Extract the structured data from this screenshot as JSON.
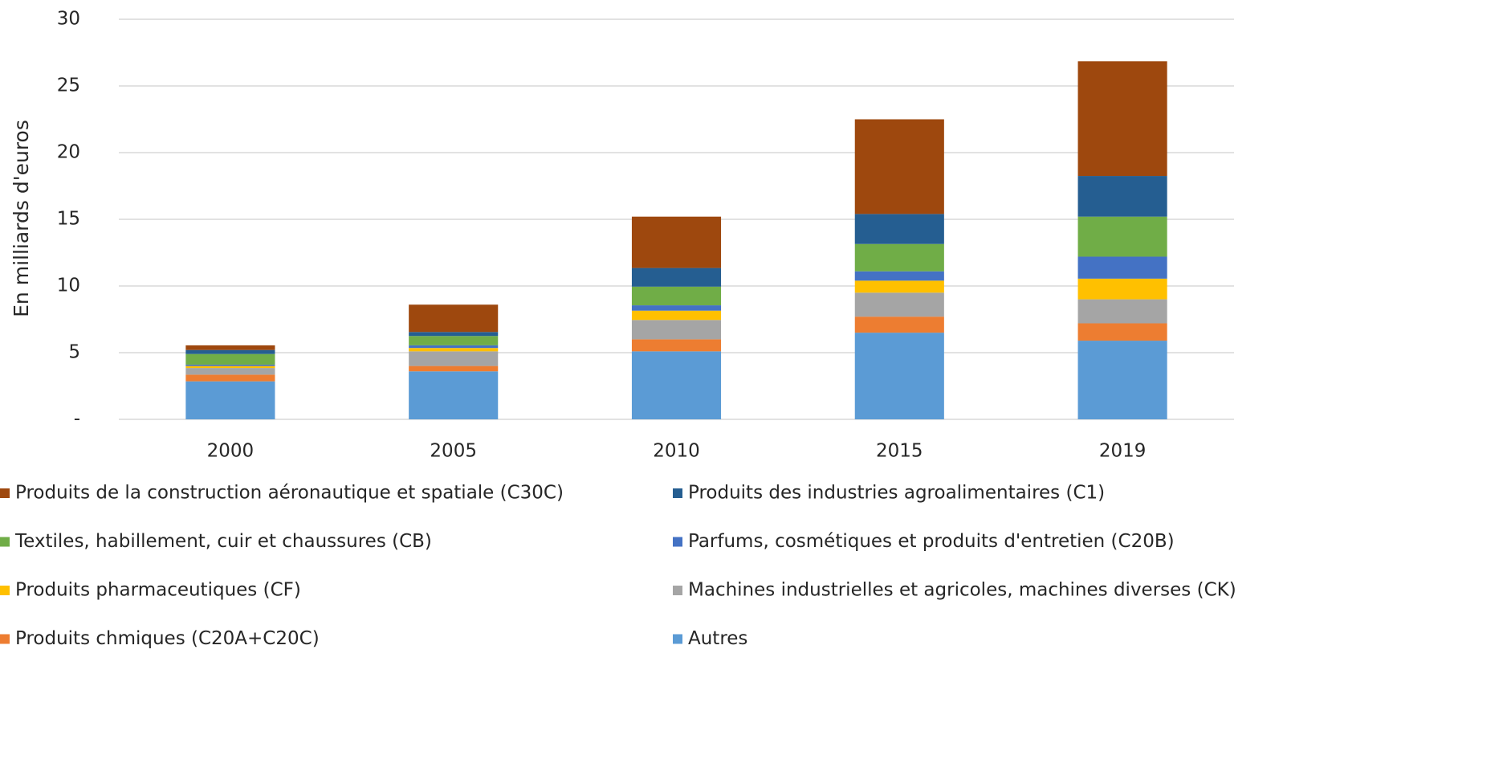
{
  "chart_data": {
    "type": "stacked_bar",
    "ylabel": "En milliards d'euros",
    "categories": [
      "2000",
      "2005",
      "2010",
      "2015",
      "2019"
    ],
    "ylim": [
      0,
      30
    ],
    "yticks": [
      {
        "value": 0,
        "label": "-"
      },
      5,
      10,
      15,
      20,
      25,
      30
    ],
    "grid": true,
    "legend": "bottom",
    "series": [
      {
        "name": "Produits de la construction aéronautique et spatiale (C30C)",
        "color": "#9e480e",
        "values": [
          0.35,
          2.05,
          3.85,
          7.1,
          8.6
        ]
      },
      {
        "name": "Produits des industries agroalimentaires (C1)",
        "color": "#255e91",
        "values": [
          0.3,
          0.3,
          1.4,
          2.25,
          3.05
        ]
      },
      {
        "name": "Textiles, habillement, cuir et chaussures (CB)",
        "color": "#70ad47",
        "values": [
          0.8,
          0.7,
          1.4,
          2.05,
          3.0
        ]
      },
      {
        "name": "Parfums, cosmétiques et produits d'entretien (C20B)",
        "color": "#4472c4",
        "values": [
          0.1,
          0.2,
          0.4,
          0.7,
          1.65
        ]
      },
      {
        "name": "Produits pharmaceutiques (CF)",
        "color": "#ffc000",
        "values": [
          0.15,
          0.25,
          0.7,
          0.9,
          1.55
        ]
      },
      {
        "name": "Machines industrielles et agricoles, machines diverses (CK)",
        "color": "#a5a5a5",
        "values": [
          0.5,
          1.1,
          1.45,
          1.8,
          1.8
        ]
      },
      {
        "name": "Produits chmiques (C20A+C20C)",
        "color": "#ed7d31",
        "values": [
          0.5,
          0.4,
          0.9,
          1.2,
          1.3
        ]
      },
      {
        "name": "Autres",
        "color": "#5b9bd5",
        "values": [
          2.85,
          3.6,
          5.1,
          6.5,
          5.9
        ]
      }
    ]
  }
}
